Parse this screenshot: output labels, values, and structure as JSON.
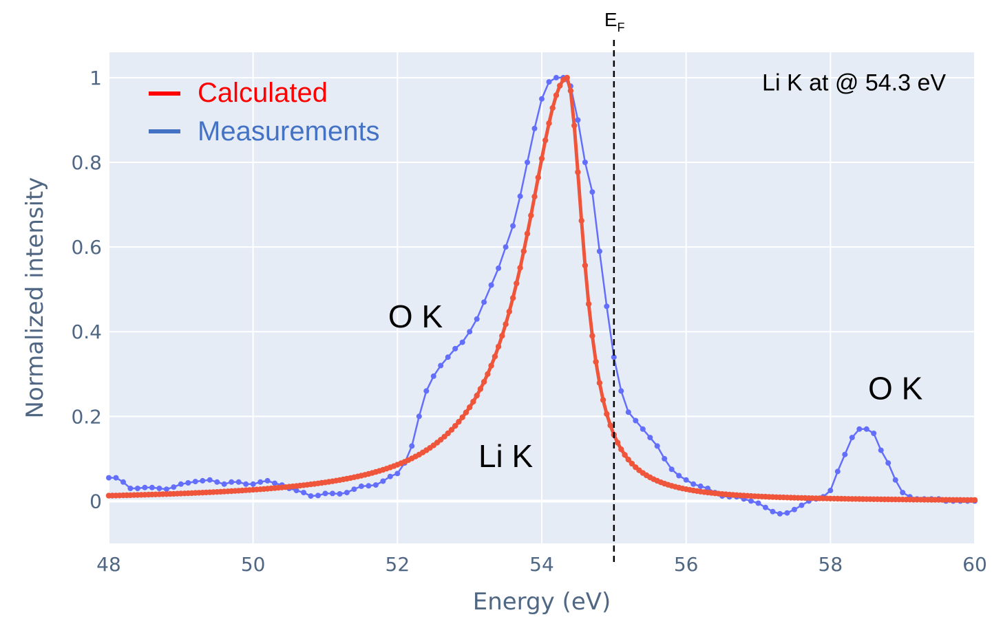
{
  "chart_data": {
    "type": "line",
    "xlabel": "Energy (eV)",
    "ylabel": "Normalized intensity",
    "xlim": [
      48,
      60
    ],
    "ylim": [
      -0.1,
      1.06
    ],
    "x_ticks": [
      "48",
      "50",
      "52",
      "54",
      "56",
      "58",
      "60"
    ],
    "y_ticks": [
      "0",
      "0.2",
      "0.4",
      "0.6",
      "0.8",
      "1"
    ],
    "grid": true,
    "legend_position": "top-left",
    "series": [
      {
        "name": "Calculated",
        "color": "#ef553b",
        "model": {
          "kind": "lorentzian-step",
          "center": 54.35,
          "gamma_left": 0.72,
          "gamma_right": 0.28,
          "baseline": 0.0,
          "peak": 1.0,
          "x_start": 48,
          "x_end": 60,
          "step": 0.05
        },
        "x": [],
        "y": []
      },
      {
        "name": "Measurements",
        "color": "#636efa",
        "x": [
          48.0,
          48.1,
          48.2,
          48.3,
          48.4,
          48.5,
          48.6,
          48.7,
          48.8,
          48.9,
          49.0,
          49.1,
          49.2,
          49.3,
          49.4,
          49.5,
          49.6,
          49.7,
          49.8,
          49.9,
          50.0,
          50.1,
          50.2,
          50.3,
          50.4,
          50.5,
          50.6,
          50.7,
          50.8,
          50.9,
          51.0,
          51.1,
          51.2,
          51.3,
          51.4,
          51.5,
          51.6,
          51.7,
          51.8,
          51.9,
          52.0,
          52.1,
          52.2,
          52.3,
          52.4,
          52.5,
          52.6,
          52.7,
          52.8,
          52.9,
          53.0,
          53.1,
          53.2,
          53.3,
          53.4,
          53.5,
          53.6,
          53.7,
          53.8,
          53.9,
          54.0,
          54.1,
          54.2,
          54.3,
          54.4,
          54.5,
          54.6,
          54.7,
          54.8,
          54.9,
          55.0,
          55.1,
          55.2,
          55.3,
          55.4,
          55.5,
          55.6,
          55.7,
          55.8,
          55.9,
          56.0,
          56.1,
          56.2,
          56.3,
          56.4,
          56.5,
          56.6,
          56.7,
          56.8,
          56.9,
          57.0,
          57.1,
          57.2,
          57.3,
          57.4,
          57.5,
          57.6,
          57.7,
          57.8,
          57.9,
          58.0,
          58.1,
          58.2,
          58.3,
          58.4,
          58.5,
          58.6,
          58.7,
          58.8,
          58.9,
          59.0,
          59.1,
          59.2,
          59.3,
          59.4,
          59.5,
          59.6,
          59.7,
          59.8,
          59.9,
          60.0
        ],
        "y": [
          0.055,
          0.055,
          0.045,
          0.03,
          0.03,
          0.032,
          0.032,
          0.03,
          0.028,
          0.033,
          0.04,
          0.043,
          0.046,
          0.048,
          0.05,
          0.045,
          0.04,
          0.045,
          0.045,
          0.04,
          0.04,
          0.045,
          0.048,
          0.042,
          0.038,
          0.03,
          0.025,
          0.02,
          0.012,
          0.013,
          0.018,
          0.018,
          0.017,
          0.02,
          0.028,
          0.035,
          0.036,
          0.038,
          0.047,
          0.058,
          0.065,
          0.09,
          0.13,
          0.2,
          0.26,
          0.295,
          0.32,
          0.34,
          0.36,
          0.375,
          0.4,
          0.43,
          0.47,
          0.51,
          0.55,
          0.6,
          0.65,
          0.72,
          0.8,
          0.88,
          0.95,
          0.99,
          1.0,
          1.0,
          0.98,
          0.9,
          0.8,
          0.73,
          0.59,
          0.46,
          0.34,
          0.26,
          0.21,
          0.19,
          0.17,
          0.15,
          0.13,
          0.1,
          0.075,
          0.06,
          0.05,
          0.04,
          0.035,
          0.03,
          0.02,
          0.012,
          0.01,
          0.01,
          0.005,
          0.0,
          -0.005,
          -0.015,
          -0.025,
          -0.03,
          -0.028,
          -0.02,
          -0.01,
          0.0,
          0.005,
          0.01,
          0.025,
          0.07,
          0.11,
          0.15,
          0.17,
          0.17,
          0.16,
          0.12,
          0.09,
          0.05,
          0.02,
          0.01,
          0.005,
          0.005,
          0.005,
          0.005,
          0.0,
          0.0,
          0.0,
          0.0,
          0.0
        ]
      }
    ],
    "annotations": [
      {
        "text": "Li K at @ 54.3 eV",
        "x": 59.6,
        "y": 0.97,
        "anchor": "end",
        "size": 34
      },
      {
        "text": "O K",
        "x": 52.25,
        "y": 0.41,
        "anchor": "middle",
        "size": 46
      },
      {
        "text": "O K",
        "x": 58.9,
        "y": 0.24,
        "anchor": "middle",
        "size": 46
      },
      {
        "text": "Li K",
        "x": 53.5,
        "y": 0.08,
        "anchor": "middle",
        "size": 46
      }
    ],
    "fermi_line": {
      "x": 55.0,
      "label_main": "E",
      "label_sub": "F"
    }
  }
}
